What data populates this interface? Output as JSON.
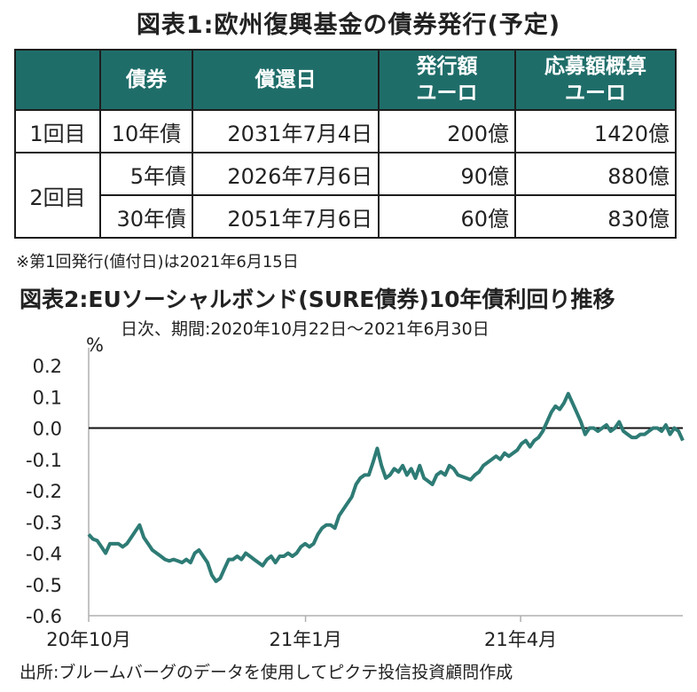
{
  "table": {
    "title": "図表1:欧州復興基金の債券発行(予定)",
    "headers": [
      "",
      "債券",
      "償還日",
      "発行額\nユーロ",
      "応募額概算\nユーロ"
    ],
    "rows": [
      {
        "round": "1回目",
        "bond": "10年債",
        "maturity": "2031年7月4日",
        "issue": "200億",
        "bids": "1420億"
      },
      {
        "round": "2回目",
        "bond": "5年債",
        "maturity": "2026年7月6日",
        "issue": "90億",
        "bids": "880億"
      },
      {
        "round": "",
        "bond": "30年債",
        "maturity": "2051年7月6日",
        "issue": "60億",
        "bids": "830億"
      }
    ],
    "note": "※第1回発行(値付日)は2021年6月15日"
  },
  "chart_data": {
    "type": "line",
    "title": "図表2:EUソーシャルボンド(SURE債券)10年債利回り推移",
    "subtitle": "日次、期間:2020年10月22日～2021年6月30日",
    "ylabel": "%",
    "ylim": [
      -0.6,
      0.2
    ],
    "yticks": [
      "0.2",
      "0.1",
      "0.0",
      "-0.1",
      "-0.2",
      "-0.3",
      "-0.4",
      "-0.5",
      "-0.6"
    ],
    "xticks": [
      "20年10月",
      "21年1月",
      "21年4月"
    ],
    "series": [
      {
        "color": "#2e7b75",
        "values": [
          -0.34,
          -0.355,
          -0.36,
          -0.38,
          -0.4,
          -0.37,
          -0.37,
          -0.37,
          -0.38,
          -0.37,
          -0.35,
          -0.33,
          -0.31,
          -0.35,
          -0.37,
          -0.39,
          -0.4,
          -0.41,
          -0.42,
          -0.425,
          -0.42,
          -0.425,
          -0.43,
          -0.42,
          -0.43,
          -0.4,
          -0.39,
          -0.41,
          -0.43,
          -0.47,
          -0.49,
          -0.48,
          -0.45,
          -0.42,
          -0.42,
          -0.41,
          -0.42,
          -0.4,
          -0.41,
          -0.42,
          -0.43,
          -0.44,
          -0.42,
          -0.41,
          -0.43,
          -0.41,
          -0.41,
          -0.4,
          -0.41,
          -0.4,
          -0.38,
          -0.37,
          -0.38,
          -0.37,
          -0.34,
          -0.32,
          -0.31,
          -0.31,
          -0.32,
          -0.28,
          -0.26,
          -0.24,
          -0.22,
          -0.18,
          -0.16,
          -0.15,
          -0.15,
          -0.11,
          -0.065,
          -0.12,
          -0.16,
          -0.15,
          -0.13,
          -0.14,
          -0.12,
          -0.15,
          -0.13,
          -0.16,
          -0.12,
          -0.16,
          -0.17,
          -0.18,
          -0.15,
          -0.14,
          -0.15,
          -0.12,
          -0.13,
          -0.15,
          -0.155,
          -0.16,
          -0.165,
          -0.15,
          -0.14,
          -0.12,
          -0.11,
          -0.1,
          -0.09,
          -0.1,
          -0.08,
          -0.09,
          -0.08,
          -0.07,
          -0.05,
          -0.04,
          -0.06,
          -0.04,
          -0.03,
          -0.01,
          0.02,
          0.05,
          0.07,
          0.06,
          0.08,
          0.11,
          0.08,
          0.05,
          0.02,
          -0.02,
          0.0,
          0.0,
          -0.01,
          0.0,
          0.01,
          -0.01,
          0.0,
          0.02,
          -0.01,
          -0.02,
          -0.03,
          -0.03,
          -0.02,
          -0.02,
          -0.01,
          0.0,
          0.0,
          -0.01,
          0.01,
          -0.02,
          0.0,
          -0.01,
          -0.04
        ]
      }
    ],
    "zero_line": true,
    "source": "出所:ブルームバーグのデータを使用してピクテ投信投資顧問作成"
  }
}
